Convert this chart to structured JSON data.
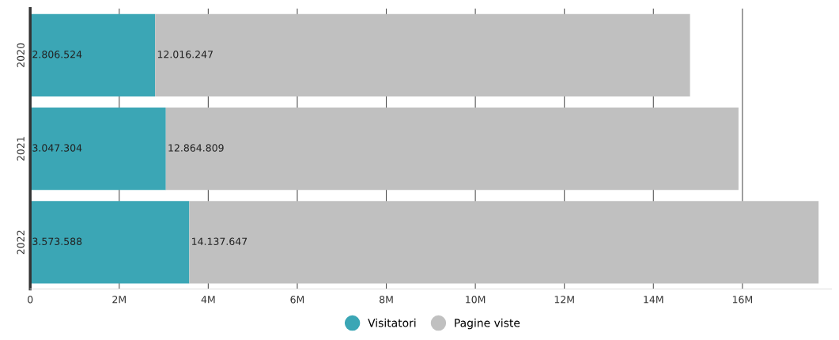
{
  "chart_data": {
    "type": "bar",
    "orientation": "horizontal",
    "stacked": true,
    "categories": [
      "2020",
      "2021",
      "2022"
    ],
    "series": [
      {
        "name": "Visitatori",
        "color": "#3ba6b5",
        "values": [
          2806524,
          3047304,
          3573588
        ],
        "value_labels": [
          "2.806.524",
          "3.047.304",
          "3.573.588"
        ]
      },
      {
        "name": "Pagine viste",
        "color": "#c0c0c0",
        "values": [
          12016247,
          12864809,
          14137647
        ],
        "value_labels": [
          "12.016.247",
          "12.864.809",
          "14.137.647"
        ]
      }
    ],
    "xlim": [
      0,
      18000000
    ],
    "xticks": [
      0,
      {
        "value": 2000000,
        "label": "2M"
      },
      {
        "value": 4000000,
        "label": "4M"
      },
      {
        "value": 6000000,
        "label": "6M"
      },
      {
        "value": 8000000,
        "label": "8M"
      },
      {
        "value": 10000000,
        "label": "10M"
      },
      {
        "value": 12000000,
        "label": "12M"
      },
      {
        "value": 14000000,
        "label": "14M"
      },
      {
        "value": 16000000,
        "label": "16M"
      }
    ],
    "grid": "x",
    "legend": "bottom"
  }
}
